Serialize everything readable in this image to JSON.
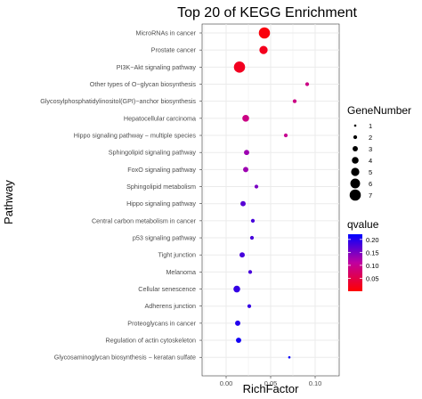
{
  "chart_data": {
    "type": "scatter",
    "title": "Top 20 of KEGG Enrichment",
    "xlabel": "RichFactor",
    "ylabel": "Pathway",
    "xlim": [
      -0.027,
      0.127
    ],
    "x_ticks": [
      0.0,
      0.05,
      0.1
    ],
    "x_tick_labels": [
      "0.00",
      "0.05",
      "0.10"
    ],
    "grid": true,
    "categories": [
      "MicroRNAs in cancer",
      "Prostate cancer",
      "PI3K−Akt signaling pathway",
      "Other types of O−glycan biosynthesis",
      "Glycosylphosphatidylinositol(GPI)−anchor biosynthesis",
      "Hepatocellular carcinoma",
      "Hippo signaling pathway − multiple species",
      "Sphingolipid signaling pathway",
      "FoxO signaling pathway",
      "Sphingolipid metabolism",
      "Hippo signaling pathway",
      "Central carbon metabolism in cancer",
      "p53 signaling pathway",
      "Tight junction",
      "Melanoma",
      "Cellular senescence",
      "Adherens junction",
      "Proteoglycans in cancer",
      "Regulation of actin cytoskeleton",
      "Glycosaminoglycan biosynthesis − keratan sulfate"
    ],
    "points": [
      {
        "x": 0.043,
        "gene_number": 7,
        "qvalue": 0.008
      },
      {
        "x": 0.042,
        "gene_number": 5,
        "qvalue": 0.02
      },
      {
        "x": 0.015,
        "gene_number": 7,
        "qvalue": 0.022
      },
      {
        "x": 0.091,
        "gene_number": 2,
        "qvalue": 0.09
      },
      {
        "x": 0.077,
        "gene_number": 2,
        "qvalue": 0.09
      },
      {
        "x": 0.022,
        "gene_number": 4,
        "qvalue": 0.09
      },
      {
        "x": 0.067,
        "gene_number": 2,
        "qvalue": 0.1
      },
      {
        "x": 0.023,
        "gene_number": 3,
        "qvalue": 0.13
      },
      {
        "x": 0.022,
        "gene_number": 3,
        "qvalue": 0.13
      },
      {
        "x": 0.034,
        "gene_number": 2,
        "qvalue": 0.15
      },
      {
        "x": 0.019,
        "gene_number": 3,
        "qvalue": 0.17
      },
      {
        "x": 0.03,
        "gene_number": 2,
        "qvalue": 0.18
      },
      {
        "x": 0.029,
        "gene_number": 2,
        "qvalue": 0.18
      },
      {
        "x": 0.018,
        "gene_number": 3,
        "qvalue": 0.18
      },
      {
        "x": 0.027,
        "gene_number": 2,
        "qvalue": 0.18
      },
      {
        "x": 0.012,
        "gene_number": 4,
        "qvalue": 0.19
      },
      {
        "x": 0.026,
        "gene_number": 2,
        "qvalue": 0.19
      },
      {
        "x": 0.013,
        "gene_number": 3,
        "qvalue": 0.2
      },
      {
        "x": 0.014,
        "gene_number": 3,
        "qvalue": 0.21
      },
      {
        "x": 0.071,
        "gene_number": 1,
        "qvalue": 0.215
      }
    ],
    "size_legend": {
      "title": "GeneNumber",
      "values": [
        1,
        2,
        3,
        4,
        5,
        6,
        7
      ],
      "labels": [
        "1",
        "2",
        "3",
        "4",
        "5",
        "6",
        "7"
      ]
    },
    "color_legend": {
      "title": "qvalue",
      "range": [
        0.0,
        0.22
      ],
      "ticks": [
        0.05,
        0.1,
        0.15,
        0.2
      ],
      "tick_labels": [
        "0.05",
        "0.10",
        "0.15",
        "0.20"
      ],
      "low_color": "#ff0000",
      "high_color": "#0000ff"
    },
    "legend_position": "right",
    "panel_background": "#ffffff",
    "grid_color": "#ebebeb"
  }
}
